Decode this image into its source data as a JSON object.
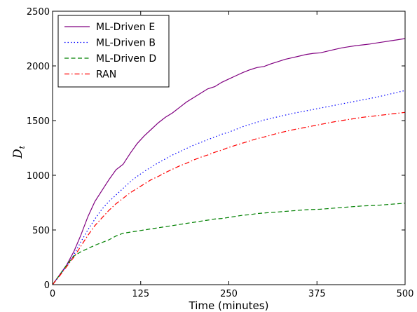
{
  "chart_data": {
    "type": "line",
    "xlabel": "Time (minutes)",
    "ylabel": {
      "main": "D",
      "sub": "t"
    },
    "xlim": [
      0,
      500
    ],
    "ylim": [
      0,
      2500
    ],
    "xticks": [
      0,
      125,
      250,
      375,
      500
    ],
    "yticks": [
      0,
      500,
      1000,
      1500,
      2000,
      2500
    ],
    "grid": false,
    "legend_position": "top-left",
    "series": [
      {
        "name": "ML-Driven E",
        "color": "#800080",
        "style": "solid",
        "points": [
          [
            0,
            0
          ],
          [
            10,
            90
          ],
          [
            20,
            180
          ],
          [
            30,
            300
          ],
          [
            40,
            450
          ],
          [
            50,
            620
          ],
          [
            60,
            760
          ],
          [
            70,
            860
          ],
          [
            80,
            960
          ],
          [
            90,
            1050
          ],
          [
            100,
            1100
          ],
          [
            110,
            1200
          ],
          [
            120,
            1290
          ],
          [
            130,
            1360
          ],
          [
            140,
            1420
          ],
          [
            150,
            1480
          ],
          [
            160,
            1530
          ],
          [
            170,
            1570
          ],
          [
            180,
            1620
          ],
          [
            190,
            1670
          ],
          [
            200,
            1710
          ],
          [
            210,
            1750
          ],
          [
            220,
            1790
          ],
          [
            230,
            1810
          ],
          [
            240,
            1850
          ],
          [
            250,
            1880
          ],
          [
            260,
            1910
          ],
          [
            270,
            1940
          ],
          [
            280,
            1965
          ],
          [
            290,
            1985
          ],
          [
            300,
            1995
          ],
          [
            310,
            2020
          ],
          [
            320,
            2040
          ],
          [
            330,
            2060
          ],
          [
            340,
            2075
          ],
          [
            350,
            2090
          ],
          [
            360,
            2105
          ],
          [
            370,
            2115
          ],
          [
            380,
            2120
          ],
          [
            390,
            2135
          ],
          [
            400,
            2150
          ],
          [
            410,
            2165
          ],
          [
            420,
            2175
          ],
          [
            430,
            2185
          ],
          [
            440,
            2192
          ],
          [
            450,
            2200
          ],
          [
            460,
            2210
          ],
          [
            470,
            2220
          ],
          [
            480,
            2230
          ],
          [
            490,
            2240
          ],
          [
            500,
            2250
          ]
        ]
      },
      {
        "name": "ML-Driven B",
        "color": "#0000ff",
        "style": "dotted",
        "points": [
          [
            0,
            0
          ],
          [
            10,
            85
          ],
          [
            20,
            170
          ],
          [
            30,
            270
          ],
          [
            40,
            390
          ],
          [
            50,
            500
          ],
          [
            60,
            600
          ],
          [
            70,
            690
          ],
          [
            80,
            760
          ],
          [
            90,
            820
          ],
          [
            100,
            880
          ],
          [
            110,
            940
          ],
          [
            120,
            990
          ],
          [
            130,
            1035
          ],
          [
            140,
            1075
          ],
          [
            150,
            1115
          ],
          [
            160,
            1150
          ],
          [
            170,
            1185
          ],
          [
            180,
            1215
          ],
          [
            190,
            1245
          ],
          [
            200,
            1275
          ],
          [
            210,
            1300
          ],
          [
            220,
            1325
          ],
          [
            230,
            1350
          ],
          [
            240,
            1375
          ],
          [
            250,
            1395
          ],
          [
            260,
            1420
          ],
          [
            270,
            1445
          ],
          [
            280,
            1465
          ],
          [
            290,
            1485
          ],
          [
            300,
            1505
          ],
          [
            320,
            1535
          ],
          [
            340,
            1565
          ],
          [
            360,
            1590
          ],
          [
            380,
            1615
          ],
          [
            400,
            1640
          ],
          [
            420,
            1665
          ],
          [
            440,
            1690
          ],
          [
            460,
            1715
          ],
          [
            480,
            1745
          ],
          [
            500,
            1775
          ]
        ]
      },
      {
        "name": "ML-Driven D",
        "color": "#008000",
        "style": "dashed",
        "points": [
          [
            0,
            0
          ],
          [
            10,
            90
          ],
          [
            20,
            180
          ],
          [
            30,
            260
          ],
          [
            40,
            300
          ],
          [
            50,
            330
          ],
          [
            60,
            360
          ],
          [
            70,
            385
          ],
          [
            80,
            410
          ],
          [
            90,
            445
          ],
          [
            100,
            470
          ],
          [
            110,
            480
          ],
          [
            120,
            490
          ],
          [
            130,
            500
          ],
          [
            140,
            510
          ],
          [
            150,
            520
          ],
          [
            160,
            530
          ],
          [
            170,
            540
          ],
          [
            180,
            550
          ],
          [
            190,
            560
          ],
          [
            200,
            570
          ],
          [
            210,
            580
          ],
          [
            220,
            590
          ],
          [
            230,
            600
          ],
          [
            240,
            605
          ],
          [
            250,
            615
          ],
          [
            260,
            625
          ],
          [
            270,
            635
          ],
          [
            280,
            640
          ],
          [
            290,
            650
          ],
          [
            300,
            655
          ],
          [
            320,
            665
          ],
          [
            340,
            675
          ],
          [
            360,
            685
          ],
          [
            380,
            690
          ],
          [
            400,
            700
          ],
          [
            420,
            710
          ],
          [
            440,
            720
          ],
          [
            460,
            725
          ],
          [
            480,
            735
          ],
          [
            500,
            745
          ]
        ]
      },
      {
        "name": "RAN",
        "color": "#ff0000",
        "style": "dashdot",
        "points": [
          [
            0,
            0
          ],
          [
            10,
            80
          ],
          [
            20,
            165
          ],
          [
            30,
            250
          ],
          [
            40,
            350
          ],
          [
            50,
            450
          ],
          [
            60,
            540
          ],
          [
            70,
            610
          ],
          [
            80,
            680
          ],
          [
            90,
            740
          ],
          [
            100,
            790
          ],
          [
            110,
            840
          ],
          [
            120,
            880
          ],
          [
            130,
            920
          ],
          [
            140,
            960
          ],
          [
            150,
            990
          ],
          [
            160,
            1025
          ],
          [
            170,
            1055
          ],
          [
            180,
            1085
          ],
          [
            190,
            1110
          ],
          [
            200,
            1140
          ],
          [
            210,
            1165
          ],
          [
            220,
            1185
          ],
          [
            230,
            1210
          ],
          [
            240,
            1230
          ],
          [
            250,
            1255
          ],
          [
            260,
            1275
          ],
          [
            270,
            1295
          ],
          [
            280,
            1315
          ],
          [
            290,
            1335
          ],
          [
            300,
            1350
          ],
          [
            320,
            1385
          ],
          [
            340,
            1415
          ],
          [
            360,
            1440
          ],
          [
            380,
            1465
          ],
          [
            400,
            1490
          ],
          [
            420,
            1510
          ],
          [
            440,
            1530
          ],
          [
            460,
            1545
          ],
          [
            480,
            1560
          ],
          [
            500,
            1575
          ]
        ]
      }
    ]
  }
}
